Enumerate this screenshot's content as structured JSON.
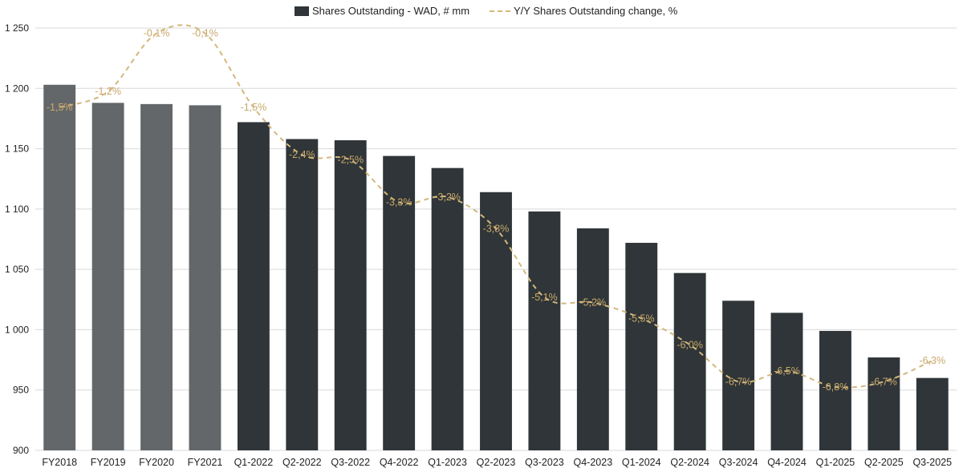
{
  "chart_data": {
    "type": "bar",
    "categories": [
      "FY2018",
      "FY2019",
      "FY2020",
      "FY2021",
      "Q1-2022",
      "Q2-2022",
      "Q3-2022",
      "Q4-2022",
      "Q1-2023",
      "Q2-2023",
      "Q3-2023",
      "Q4-2023",
      "Q1-2024",
      "Q2-2024",
      "Q3-2024",
      "Q4-2024",
      "Q1-2025",
      "Q2-2025",
      "Q3-2025"
    ],
    "series": [
      {
        "name": "Shares Outstanding - WAD, # mm",
        "type": "bar",
        "values": [
          1203,
          1188,
          1187,
          1186,
          1172,
          1158,
          1157,
          1144,
          1134,
          1114,
          1098,
          1084,
          1072,
          1047,
          1024,
          1014,
          999,
          977,
          960
        ]
      },
      {
        "name": "Y/Y Shares Outstanding change, %",
        "type": "line",
        "style": "dashed",
        "values": [
          -1.5,
          -1.2,
          -0.1,
          -0.1,
          -1.5,
          -2.4,
          -2.5,
          -3.3,
          -3.2,
          -3.8,
          -5.1,
          -5.2,
          -5.5,
          -6.0,
          -6.7,
          -6.5,
          -6.8,
          -6.7,
          -6.3
        ],
        "labels": [
          "-1,5%",
          "-1,2%",
          "-0,1%",
          "-0,1%",
          "-1,5%",
          "-2,4%",
          "-2,5%",
          "-3,3%",
          "-3,2%",
          "-3,8%",
          "-5,1%",
          "-5,2%",
          "-5,5%",
          "-6,0%",
          "-6,7%",
          "-6,5%",
          "-6,8%",
          "-6,7%",
          "-6,3%"
        ]
      }
    ],
    "ylim": [
      900,
      1250
    ],
    "yticks": [
      900,
      950,
      1000,
      1050,
      1100,
      1150,
      1200,
      1250
    ],
    "ytick_labels": [
      "900",
      "950",
      "1 000",
      "1 050",
      "1 100",
      "1 150",
      "1 200",
      "1 250"
    ],
    "line_ylim": [
      -8,
      0
    ],
    "grid": true,
    "legend_position": "top-center",
    "colors": {
      "bar_fy": "#646769",
      "bar_q": "#2f3538",
      "line": "#d4b77c",
      "label": "#c9a86a"
    }
  }
}
